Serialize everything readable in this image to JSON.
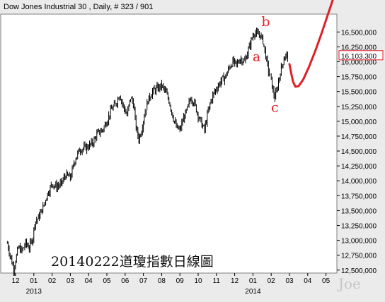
{
  "header": {
    "title": "Dow Jones Industrial 30 , Daily, # 323 / 901"
  },
  "caption": "20140222道瓊指數日線圖",
  "signature": "Joe",
  "colors": {
    "background": "#ebebeb",
    "plot_background": "#ffffff",
    "price": "#000000",
    "projection": "#dd2027",
    "wave_labels": "#e8202a",
    "last_price_box": "#e8202a"
  },
  "chart_data": {
    "type": "line",
    "style": "daily OHLC bars",
    "title": "Dow Jones Industrial 30 , Daily, # 323 / 901",
    "y_axis": {
      "side": "right",
      "ylim": [
        12450,
        16800
      ],
      "ticks": [
        "16,500,000",
        "16,250,000",
        "16,000,000",
        "15,750,000",
        "15,500,000",
        "15,250,000",
        "15,000,000",
        "14,750,000",
        "14,500,000",
        "14,250,000",
        "14,000,000",
        "13,750,000",
        "13,500,000",
        "13,250,000",
        "13,000,000",
        "12,750,000",
        "12,500,000"
      ],
      "tick_values": [
        16500,
        16250,
        16000,
        15750,
        15500,
        15250,
        15000,
        14750,
        14500,
        14250,
        14000,
        13750,
        13500,
        13250,
        13000,
        12750,
        12500
      ]
    },
    "x_axis": {
      "months": [
        "12",
        "01",
        "02",
        "03",
        "04",
        "05",
        "06",
        "07",
        "08",
        "09",
        "10",
        "11",
        "12",
        "01",
        "02",
        "03",
        "04",
        "05"
      ],
      "month_index": [
        0,
        1,
        2,
        3,
        4,
        5,
        6,
        7,
        8,
        9,
        10,
        11,
        12,
        13,
        14,
        15,
        16,
        17
      ],
      "years": [
        {
          "label": "2013",
          "month_index": 1
        },
        {
          "label": "2014",
          "month_index": 13
        }
      ]
    },
    "last_price": {
      "label": "16,103.300",
      "value": 16103.3
    },
    "series": [
      {
        "values": [
          {
            "m": -0.45,
            "v": 12950
          },
          {
            "m": -0.3,
            "v": 12750
          },
          {
            "m": -0.1,
            "v": 12520
          },
          {
            "m": 0.15,
            "v": 12880
          },
          {
            "m": 0.35,
            "v": 12820
          },
          {
            "m": 0.55,
            "v": 12950
          },
          {
            "m": 0.75,
            "v": 12880
          },
          {
            "m": 0.95,
            "v": 13050
          },
          {
            "m": 1.05,
            "v": 13300
          },
          {
            "m": 1.25,
            "v": 13380
          },
          {
            "m": 1.5,
            "v": 13550
          },
          {
            "m": 1.75,
            "v": 13780
          },
          {
            "m": 2.0,
            "v": 13950
          },
          {
            "m": 2.25,
            "v": 13900
          },
          {
            "m": 2.5,
            "v": 13950
          },
          {
            "m": 2.75,
            "v": 14100
          },
          {
            "m": 3.0,
            "v": 14050
          },
          {
            "m": 3.25,
            "v": 14350
          },
          {
            "m": 3.5,
            "v": 14520
          },
          {
            "m": 3.75,
            "v": 14550
          },
          {
            "m": 4.0,
            "v": 14580
          },
          {
            "m": 4.25,
            "v": 14650
          },
          {
            "m": 4.5,
            "v": 14800
          },
          {
            "m": 4.75,
            "v": 14850
          },
          {
            "m": 5.0,
            "v": 15000
          },
          {
            "m": 5.25,
            "v": 15200
          },
          {
            "m": 5.5,
            "v": 15300
          },
          {
            "m": 5.7,
            "v": 15450
          },
          {
            "m": 5.9,
            "v": 15250
          },
          {
            "m": 6.1,
            "v": 15100
          },
          {
            "m": 6.3,
            "v": 15400
          },
          {
            "m": 6.45,
            "v": 15300
          },
          {
            "m": 6.6,
            "v": 14900
          },
          {
            "m": 6.75,
            "v": 14700
          },
          {
            "m": 6.9,
            "v": 14850
          },
          {
            "m": 7.05,
            "v": 15100
          },
          {
            "m": 7.25,
            "v": 15350
          },
          {
            "m": 7.5,
            "v": 15500
          },
          {
            "m": 7.75,
            "v": 15550
          },
          {
            "m": 8.0,
            "v": 15600
          },
          {
            "m": 8.2,
            "v": 15500
          },
          {
            "m": 8.4,
            "v": 15350
          },
          {
            "m": 8.6,
            "v": 15100
          },
          {
            "m": 8.8,
            "v": 14900
          },
          {
            "m": 9.0,
            "v": 14850
          },
          {
            "m": 9.2,
            "v": 15050
          },
          {
            "m": 9.4,
            "v": 15200
          },
          {
            "m": 9.6,
            "v": 15400
          },
          {
            "m": 9.8,
            "v": 15300
          },
          {
            "m": 10.0,
            "v": 15100
          },
          {
            "m": 10.2,
            "v": 14950
          },
          {
            "m": 10.35,
            "v": 14850
          },
          {
            "m": 10.5,
            "v": 15100
          },
          {
            "m": 10.7,
            "v": 15350
          },
          {
            "m": 10.9,
            "v": 15500
          },
          {
            "m": 11.1,
            "v": 15600
          },
          {
            "m": 11.3,
            "v": 15700
          },
          {
            "m": 11.5,
            "v": 15750
          },
          {
            "m": 11.7,
            "v": 15900
          },
          {
            "m": 11.9,
            "v": 16000
          },
          {
            "m": 12.1,
            "v": 15950
          },
          {
            "m": 12.3,
            "v": 16050
          },
          {
            "m": 12.55,
            "v": 16000
          },
          {
            "m": 12.75,
            "v": 16200
          },
          {
            "m": 12.95,
            "v": 16400
          },
          {
            "m": 13.1,
            "v": 16500
          },
          {
            "m": 13.25,
            "v": 16450
          },
          {
            "m": 13.4,
            "v": 16450
          },
          {
            "m": 13.55,
            "v": 16350
          },
          {
            "m": 13.7,
            "v": 16100
          },
          {
            "m": 13.85,
            "v": 15850
          },
          {
            "m": 14.0,
            "v": 15700
          },
          {
            "m": 14.1,
            "v": 15500
          },
          {
            "m": 14.2,
            "v": 15400
          },
          {
            "m": 14.3,
            "v": 15500
          },
          {
            "m": 14.45,
            "v": 15750
          },
          {
            "m": 14.6,
            "v": 15950
          },
          {
            "m": 14.75,
            "v": 16100
          },
          {
            "m": 14.9,
            "v": 16103
          }
        ]
      }
    ],
    "projection": [
      {
        "m": 15.0,
        "v": 15960
      },
      {
        "m": 15.1,
        "v": 15800
      },
      {
        "m": 15.2,
        "v": 15660
      },
      {
        "m": 15.33,
        "v": 15580
      },
      {
        "m": 15.5,
        "v": 15590
      },
      {
        "m": 15.75,
        "v": 15700
      },
      {
        "m": 16.05,
        "v": 15900
      },
      {
        "m": 16.4,
        "v": 16170
      },
      {
        "m": 16.75,
        "v": 16470
      },
      {
        "m": 17.1,
        "v": 16790
      },
      {
        "m": 17.42,
        "v": 17080
      }
    ],
    "annotations": [
      {
        "label": "a",
        "m": 13.2,
        "v": 16010
      },
      {
        "label": "b",
        "m": 13.7,
        "v": 16600
      },
      {
        "label": "c",
        "m": 14.2,
        "v": 15160
      }
    ]
  }
}
